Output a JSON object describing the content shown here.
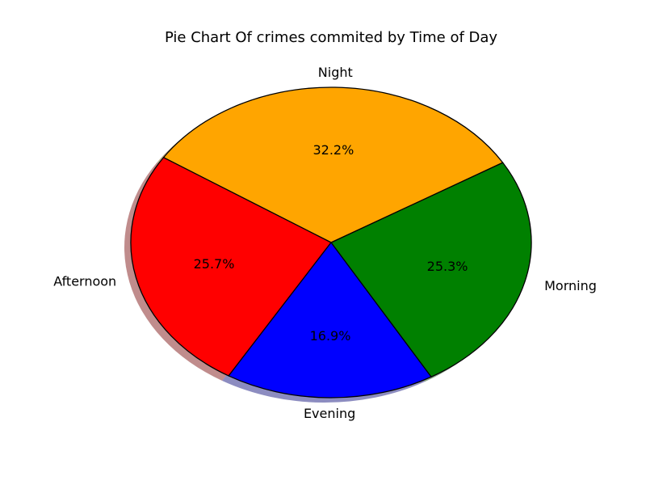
{
  "chart_data": {
    "type": "pie",
    "title": "Pie Chart Of crimes commited by Time of Day",
    "categories": [
      "Morning",
      "Night",
      "Afternoon",
      "Evening"
    ],
    "values": [
      25.3,
      32.2,
      25.7,
      16.9
    ],
    "value_labels": [
      "25.3%",
      "32.2%",
      "25.7%",
      "16.9%"
    ],
    "colors": [
      "#008000",
      "#ffa500",
      "#ff0000",
      "#0000ff"
    ],
    "edge_color": "#000000",
    "shadow": true,
    "start_angle_deg": -60,
    "direction": "counterclockwise"
  }
}
